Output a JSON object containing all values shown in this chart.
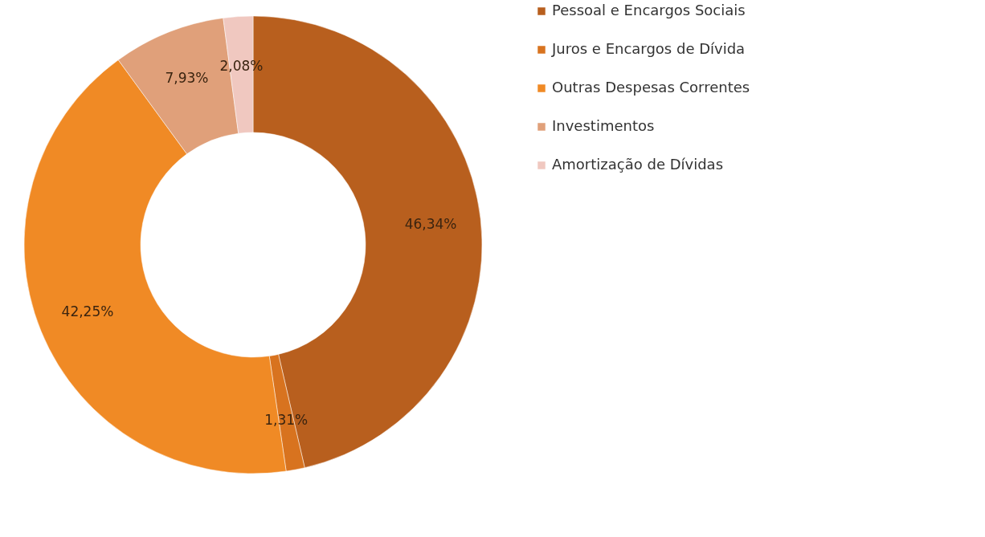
{
  "chart_data": {
    "type": "donut",
    "categories": [
      "Pessoal e Encargos Sociais",
      "Juros e Encargos de Dívida",
      "Outras Despesas Correntes",
      "Investimentos",
      "Amortização de Dívidas"
    ],
    "values": [
      46.34,
      1.31,
      42.25,
      7.93,
      2.08
    ],
    "colors": [
      "#b85f1e",
      "#d8731f",
      "#f08a25",
      "#e0a07a",
      "#f0c8c0"
    ],
    "value_labels": [
      "46,34%",
      "1,31%",
      "42,25%",
      "7,93%",
      "2,08%"
    ],
    "legend": "right"
  }
}
